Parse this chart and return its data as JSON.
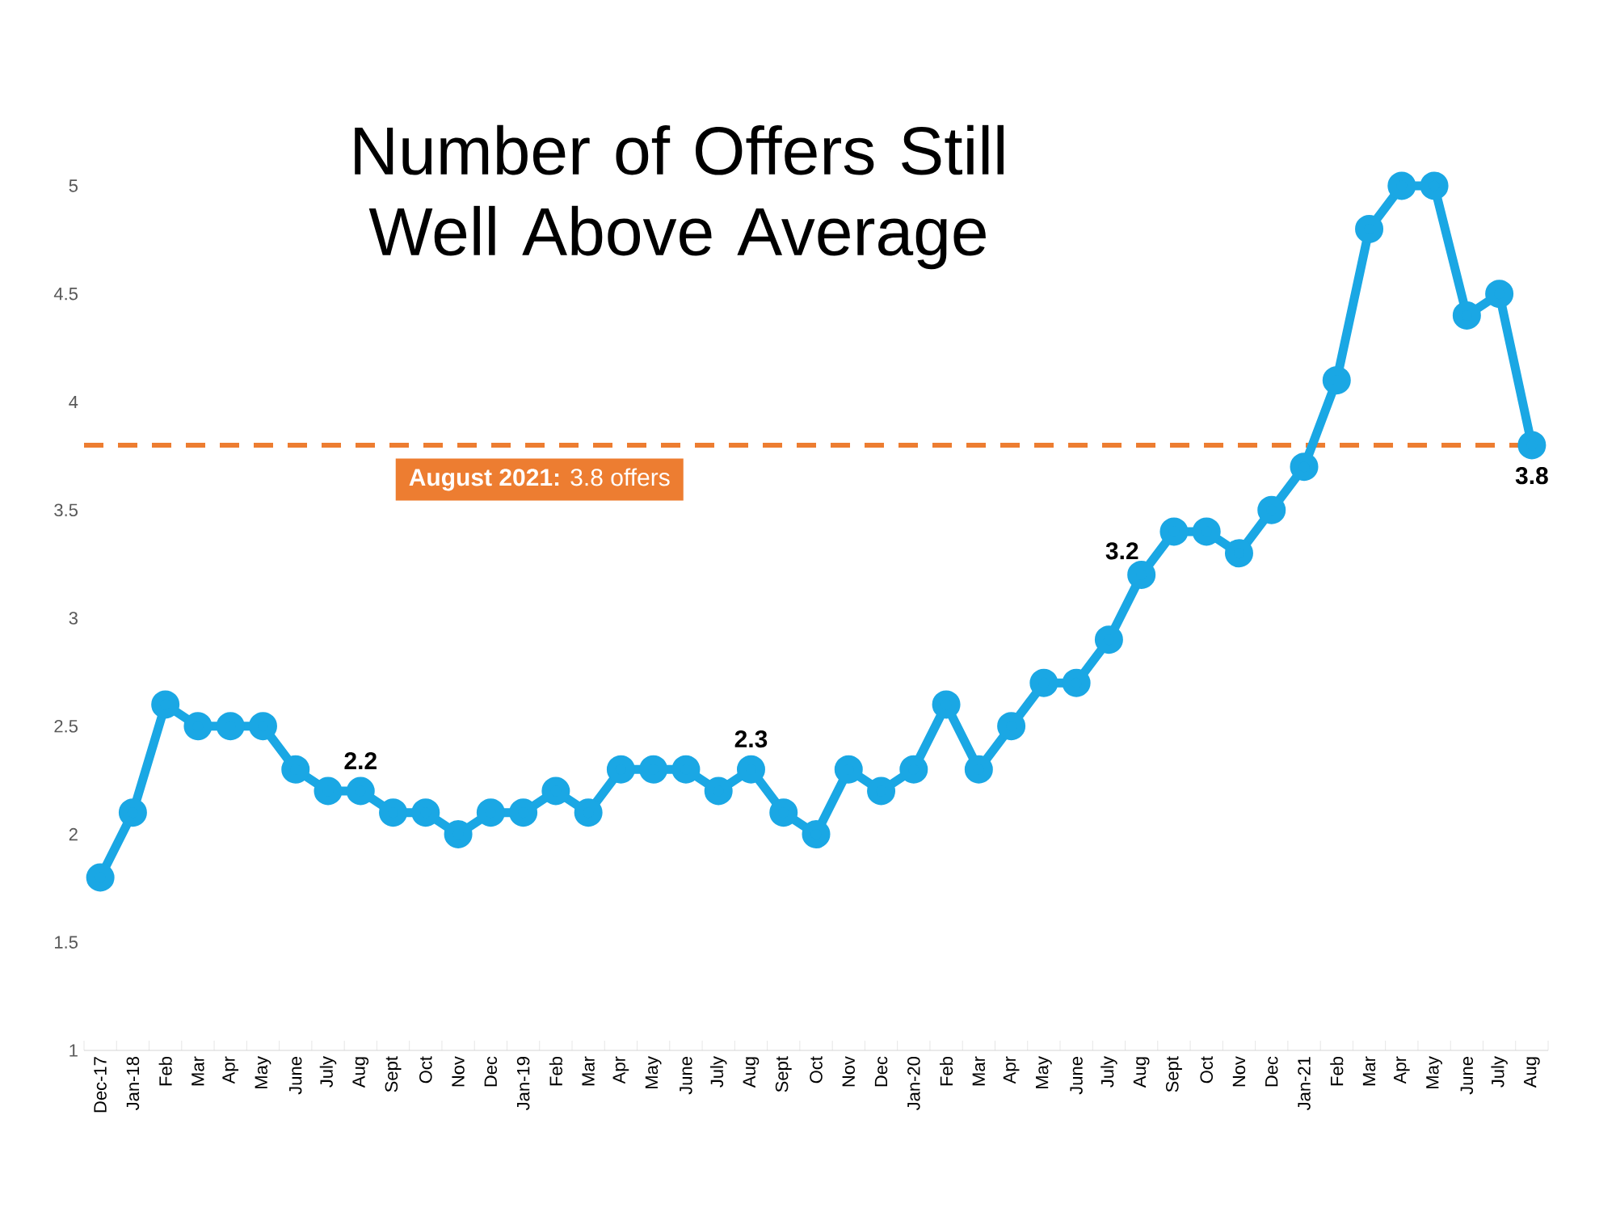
{
  "chart_data": {
    "type": "line",
    "title": "Number of Offers Still Well Above Average",
    "categories": [
      "Dec-17",
      "Jan-18",
      "Feb",
      "Mar",
      "Apr",
      "May",
      "June",
      "July",
      "Aug",
      "Sept",
      "Oct",
      "Nov",
      "Dec",
      "Jan-19",
      "Feb",
      "Mar",
      "Apr",
      "May",
      "June",
      "July",
      "Aug",
      "Sept",
      "Oct",
      "Nov",
      "Dec",
      "Jan-20",
      "Feb",
      "Mar",
      "Apr",
      "May",
      "June",
      "July",
      "Aug",
      "Sept",
      "Oct",
      "Nov",
      "Dec",
      "Jan-21",
      "Feb",
      "Mar",
      "Apr",
      "May",
      "June",
      "July",
      "Aug"
    ],
    "values": [
      1.8,
      2.1,
      2.6,
      2.5,
      2.5,
      2.5,
      2.3,
      2.2,
      2.2,
      2.1,
      2.1,
      2.0,
      2.1,
      2.1,
      2.2,
      2.1,
      2.3,
      2.3,
      2.3,
      2.2,
      2.3,
      2.1,
      2.0,
      2.3,
      2.2,
      2.3,
      2.6,
      2.3,
      2.5,
      2.7,
      2.7,
      2.9,
      3.2,
      3.4,
      3.4,
      3.3,
      3.5,
      3.7,
      4.1,
      4.8,
      5.0,
      5.0,
      4.4,
      4.5,
      3.8
    ],
    "value_labels": [
      null,
      null,
      null,
      null,
      null,
      null,
      null,
      null,
      "2.2",
      null,
      null,
      null,
      null,
      null,
      null,
      null,
      null,
      null,
      null,
      null,
      "2.3",
      null,
      null,
      null,
      null,
      null,
      null,
      null,
      null,
      null,
      null,
      null,
      "3.2",
      null,
      null,
      null,
      null,
      null,
      null,
      null,
      null,
      null,
      null,
      null,
      "3.8"
    ],
    "color": "#1aa7e4",
    "marker": "circle",
    "line_style": "solid",
    "ylim": [
      1,
      5
    ],
    "yticks": [
      1,
      1.5,
      2,
      2.5,
      3,
      3.5,
      4,
      4.5,
      5
    ],
    "ref_lines": [
      {
        "axis": "y",
        "value": 3.8,
        "label": "**August 2021:** 3.8 offers",
        "color": "#ed7d31",
        "line_style": "dashed"
      }
    ]
  }
}
